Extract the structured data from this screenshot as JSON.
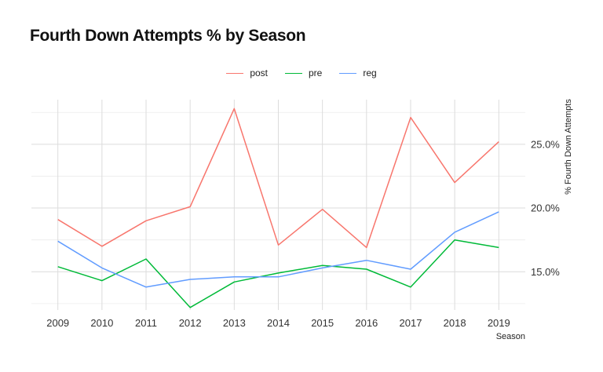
{
  "chart_data": {
    "type": "line",
    "title": "Fourth Down Attempts % by Season",
    "xlabel": "Season",
    "ylabel": "% Fourth Down Attempts",
    "x": [
      2009,
      2010,
      2011,
      2012,
      2013,
      2014,
      2015,
      2016,
      2017,
      2018,
      2019
    ],
    "y_ticks": [
      "15.0%",
      "20.0%",
      "25.0%"
    ],
    "y_tick_values": [
      15.0,
      20.0,
      25.0
    ],
    "ylim": [
      12.0,
      28.5
    ],
    "grid": true,
    "legend_position": "top-center",
    "y_axis_side": "right",
    "series": [
      {
        "name": "post",
        "color": "#F8766D",
        "values": [
          19.1,
          17.0,
          19.0,
          20.1,
          27.8,
          17.1,
          19.9,
          16.9,
          27.1,
          22.0,
          25.2
        ]
      },
      {
        "name": "pre",
        "color": "#00BA38",
        "values": [
          15.4,
          14.3,
          16.0,
          12.2,
          14.2,
          14.9,
          15.5,
          15.2,
          13.8,
          17.5,
          16.9
        ]
      },
      {
        "name": "reg",
        "color": "#619CFF",
        "values": [
          17.4,
          15.3,
          13.8,
          14.4,
          14.6,
          14.6,
          15.3,
          15.9,
          15.2,
          18.1,
          19.7
        ]
      }
    ]
  }
}
